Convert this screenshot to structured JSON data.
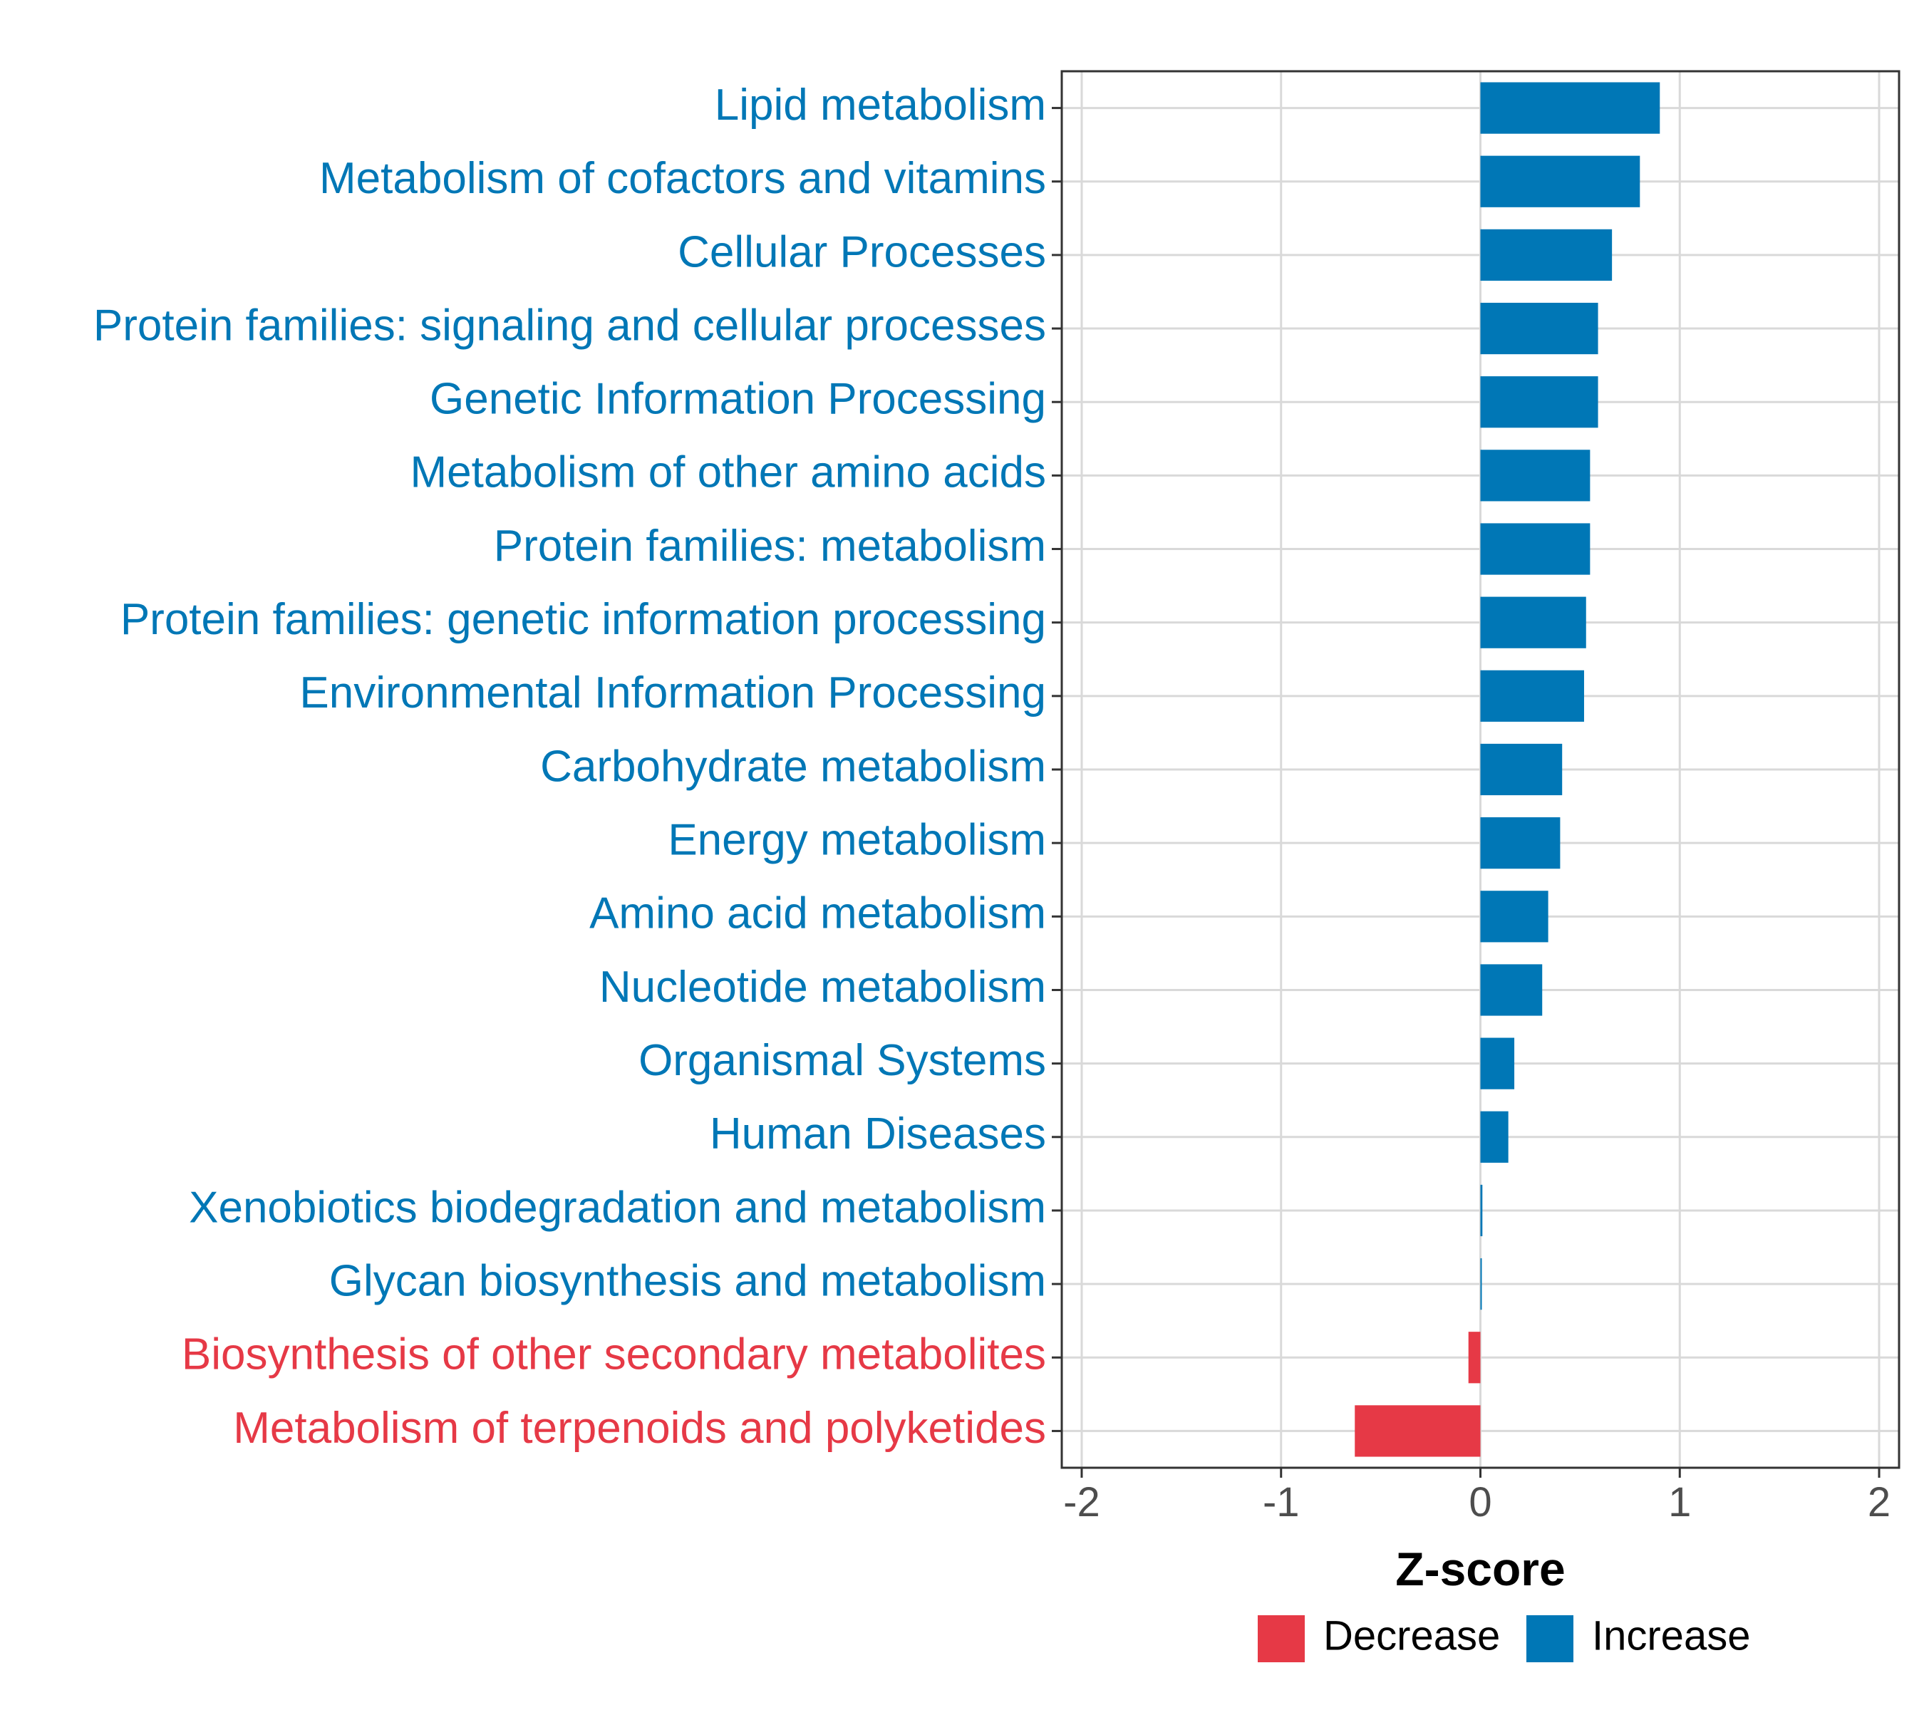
{
  "chart_data": {
    "type": "bar",
    "orientation": "horizontal",
    "title": "",
    "xlabel": "Z-score",
    "ylabel": "",
    "xlim": [
      -2.1,
      2.1
    ],
    "x_ticks": [
      -2,
      -1,
      0,
      1,
      2
    ],
    "x_tick_labels": [
      "-2",
      "-1",
      "0",
      "1",
      "2"
    ],
    "grid": true,
    "legend_position": "bottom",
    "categories": [
      "Lipid metabolism",
      "Metabolism of cofactors and vitamins",
      "Cellular Processes",
      "Protein families: signaling and cellular processes",
      "Genetic Information Processing",
      "Metabolism of other amino acids",
      "Protein families: metabolism",
      "Protein families: genetic information processing",
      "Environmental Information Processing",
      "Carbohydrate metabolism",
      "Energy metabolism",
      "Amino acid metabolism",
      "Nucleotide metabolism",
      "Organismal Systems",
      "Human Diseases",
      "Xenobiotics biodegradation and metabolism",
      "Glycan biosynthesis and metabolism",
      "Biosynthesis of other secondary metabolites",
      "Metabolism of terpenoids and polyketides"
    ],
    "values": [
      0.9,
      0.8,
      0.66,
      0.59,
      0.59,
      0.55,
      0.55,
      0.53,
      0.52,
      0.41,
      0.4,
      0.34,
      0.31,
      0.17,
      0.14,
      0.01,
      0.005,
      -0.06,
      -0.63
    ],
    "groups": [
      "Increase",
      "Increase",
      "Increase",
      "Increase",
      "Increase",
      "Increase",
      "Increase",
      "Increase",
      "Increase",
      "Increase",
      "Increase",
      "Increase",
      "Increase",
      "Increase",
      "Increase",
      "Increase",
      "Increase",
      "Decrease",
      "Decrease"
    ],
    "legend": [
      {
        "name": "Decrease",
        "color": "#e63946"
      },
      {
        "name": "Increase",
        "color": "#0077b6"
      }
    ]
  }
}
